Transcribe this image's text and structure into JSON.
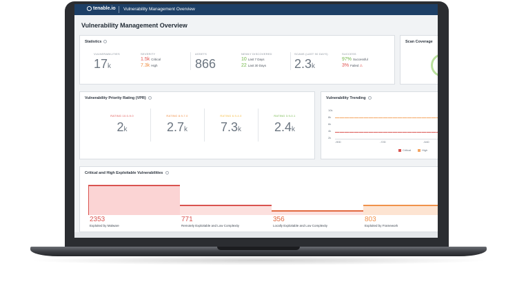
{
  "header": {
    "brand": "tenable.io",
    "title": "Vulnerability Management Overview"
  },
  "page_title": "Vulnerability Management Overview",
  "statistics": {
    "title": "Statistics",
    "vulnerabilities": {
      "label": "VULNERABILITIES",
      "value": "17",
      "unit": "k"
    },
    "severity": {
      "label": "SEVERITY",
      "critical": {
        "value": "1.5k",
        "label": "Critical"
      },
      "high": {
        "value": "7.3k",
        "label": "High"
      }
    },
    "assets": {
      "label": "ASSETS",
      "value": "866"
    },
    "newly_discovered": {
      "label": "NEWLY DISCOVERED",
      "last7": {
        "value": "10",
        "label": "Last 7 Days"
      },
      "last30": {
        "value": "22",
        "label": "Last 30 Days"
      }
    },
    "scans": {
      "label": "SCANS (LAST 90 DAYS)",
      "value": "2.3",
      "unit": "k"
    },
    "success": {
      "label": "SUCCESS",
      "successful": {
        "value": "97%",
        "label": "Successful"
      },
      "failed": {
        "value": "3%",
        "label": "Failed"
      }
    }
  },
  "scan_coverage": {
    "title": "Scan Coverage"
  },
  "vpr": {
    "title": "Vulnerability Priority Rating (VPR)",
    "ratings": [
      {
        "label": "RATING 10.0-9.0",
        "value": "2",
        "unit": "k",
        "color": "#e0524f"
      },
      {
        "label": "RATING 8.9-7.0",
        "value": "2.7",
        "unit": "k",
        "color": "#f08a3c"
      },
      {
        "label": "RATING 6.9-4.0",
        "value": "7.3",
        "unit": "k",
        "color": "#f5b93a"
      },
      {
        "label": "RATING 3.9-0.1",
        "value": "2.4",
        "unit": "k",
        "color": "#6fb545"
      }
    ]
  },
  "trending": {
    "title": "Vulnerability Trending",
    "y_ticks": [
      "10k",
      "8k",
      "6k",
      "4k",
      "2k"
    ],
    "x_ticks": [
      "-90D",
      "-72D",
      "-54D"
    ],
    "legend": [
      {
        "label": "Critical",
        "color": "#d9534f"
      },
      {
        "label": "High",
        "color": "#f4a460"
      }
    ]
  },
  "exploitable": {
    "title": "Critical and High Exploitable Vulnerabilities",
    "items": [
      {
        "value": "2353",
        "label": "Exploited by Malware",
        "color": "#d9534f",
        "level": 1.0
      },
      {
        "value": "771",
        "label": "Remotely Exploitable and Low Complexity",
        "color": "#d9534f",
        "level": 0.33
      },
      {
        "value": "356",
        "label": "Locally Exploitable and Low Complexity",
        "color": "#e2693f",
        "level": 0.15
      },
      {
        "value": "803",
        "label": "Exploited by Framework",
        "color": "#f0914a",
        "level": 0.34
      }
    ]
  }
}
